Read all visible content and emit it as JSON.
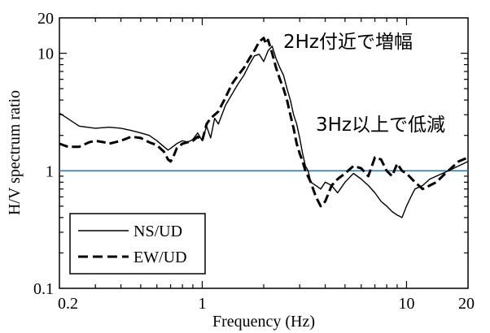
{
  "chart_data": {
    "type": "line",
    "xlabel": "Frequency (Hz)",
    "ylabel": "H/V spectrum ratio",
    "x_scale": "log",
    "y_scale": "log",
    "xlim": [
      0.2,
      20
    ],
    "ylim": [
      0.1,
      20
    ],
    "x_ticks": [
      {
        "value": 0.2,
        "label": "0.2"
      },
      {
        "value": 1,
        "label": "1"
      },
      {
        "value": 10,
        "label": "10"
      },
      {
        "value": 20,
        "label": "20"
      }
    ],
    "y_ticks": [
      {
        "value": 0.1,
        "label": "0.1"
      },
      {
        "value": 1,
        "label": "1"
      },
      {
        "value": 10,
        "label": "10"
      },
      {
        "value": 20,
        "label": "20"
      }
    ],
    "grid": false,
    "legend_position": "bottom-left",
    "series": [
      {
        "name": "NS/UD",
        "style": "solid",
        "color": "#000000",
        "x": [
          0.2,
          0.25,
          0.3,
          0.35,
          0.4,
          0.45,
          0.5,
          0.55,
          0.6,
          0.65,
          0.68,
          0.7,
          0.75,
          0.8,
          0.85,
          0.9,
          0.95,
          1.0,
          1.05,
          1.1,
          1.15,
          1.2,
          1.3,
          1.4,
          1.5,
          1.6,
          1.7,
          1.8,
          1.9,
          2.0,
          2.1,
          2.2,
          2.3,
          2.4,
          2.5,
          2.6,
          2.7,
          2.8,
          2.9,
          3.0,
          3.1,
          3.2,
          3.3,
          3.4,
          3.6,
          3.8,
          4.0,
          4.3,
          4.6,
          5.0,
          5.5,
          6.0,
          6.5,
          7.0,
          7.5,
          8.0,
          8.5,
          9.0,
          9.5,
          10.0,
          10.5,
          11,
          12,
          13,
          14,
          15,
          16,
          17,
          18,
          19,
          20
        ],
        "y": [
          3.1,
          2.4,
          2.3,
          2.35,
          2.3,
          2.2,
          2.1,
          2.0,
          1.8,
          1.6,
          1.5,
          1.55,
          1.7,
          1.8,
          1.75,
          1.85,
          2.1,
          1.8,
          2.4,
          1.9,
          2.8,
          2.5,
          3.6,
          4.5,
          5.5,
          6.5,
          8.0,
          9.5,
          9.8,
          8.5,
          10.5,
          11.5,
          9.0,
          7.5,
          6.5,
          5.0,
          4.0,
          3.0,
          2.5,
          1.9,
          1.4,
          1.1,
          1.0,
          0.8,
          0.75,
          0.7,
          0.8,
          0.75,
          0.65,
          0.8,
          0.95,
          0.85,
          0.75,
          0.65,
          0.55,
          0.5,
          0.45,
          0.42,
          0.4,
          0.5,
          0.6,
          0.7,
          0.75,
          0.85,
          0.9,
          0.95,
          1.0,
          1.05,
          1.1,
          1.15,
          1.2
        ]
      },
      {
        "name": "EW/UD",
        "style": "dashed",
        "color": "#000000",
        "x": [
          0.2,
          0.22,
          0.25,
          0.28,
          0.3,
          0.33,
          0.35,
          0.4,
          0.45,
          0.5,
          0.55,
          0.6,
          0.65,
          0.68,
          0.7,
          0.72,
          0.75,
          0.8,
          0.85,
          0.9,
          0.95,
          1.0,
          1.05,
          1.1,
          1.2,
          1.3,
          1.4,
          1.5,
          1.6,
          1.7,
          1.8,
          1.9,
          2.0,
          2.05,
          2.1,
          2.2,
          2.3,
          2.4,
          2.5,
          2.6,
          2.7,
          2.8,
          2.9,
          3.0,
          3.1,
          3.2,
          3.4,
          3.6,
          3.8,
          4.0,
          4.3,
          4.6,
          5.0,
          5.5,
          6.0,
          6.5,
          7.0,
          7.5,
          8.0,
          8.5,
          9.0,
          9.5,
          10.0,
          11,
          12,
          13,
          14,
          15,
          16,
          17,
          18,
          19,
          20
        ],
        "y": [
          1.7,
          1.6,
          1.6,
          1.75,
          1.8,
          1.75,
          1.7,
          1.8,
          1.95,
          1.9,
          1.75,
          1.65,
          1.45,
          1.25,
          1.2,
          1.3,
          1.55,
          1.7,
          1.75,
          1.8,
          1.95,
          1.8,
          2.5,
          2.8,
          3.2,
          4.2,
          5.5,
          6.5,
          7.5,
          9.0,
          10.5,
          12.5,
          13.5,
          12.0,
          13.0,
          10.0,
          7.5,
          6.0,
          5.0,
          4.0,
          3.0,
          2.3,
          1.7,
          1.4,
          1.2,
          1.0,
          0.8,
          0.6,
          0.5,
          0.55,
          0.75,
          0.85,
          0.95,
          1.1,
          1.05,
          0.9,
          1.3,
          1.25,
          1.0,
          0.9,
          1.15,
          1.0,
          0.95,
          0.8,
          0.7,
          0.75,
          0.8,
          0.9,
          1.0,
          1.1,
          1.2,
          1.25,
          1.3
        ]
      }
    ],
    "reference_line": {
      "y": 1,
      "color": "#2e75b6"
    },
    "annotations": [
      {
        "text": "2Hz付近で増幅"
      },
      {
        "text": "3Hz以上で低減"
      }
    ]
  }
}
